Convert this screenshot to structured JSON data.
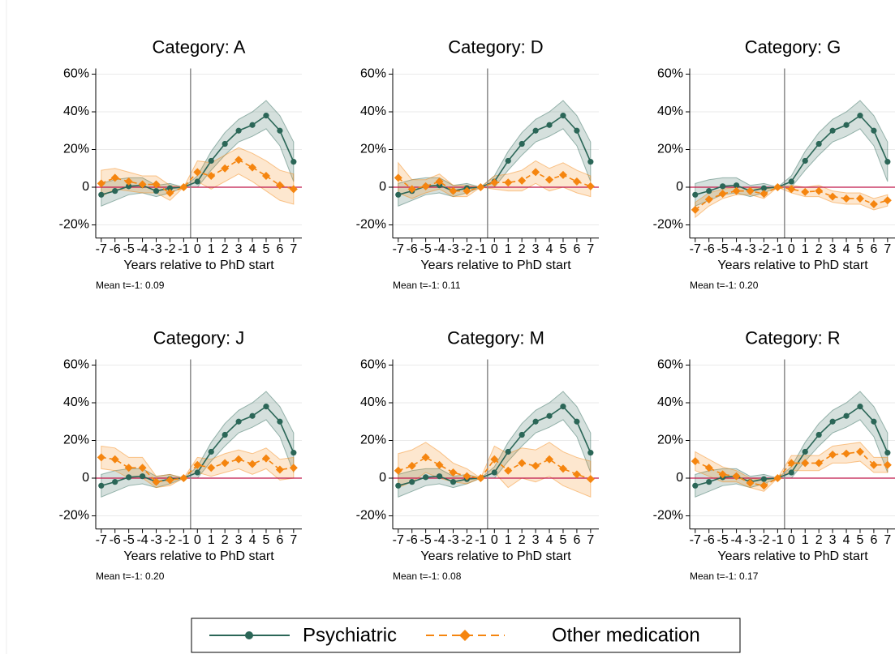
{
  "chart_data": [
    {
      "type": "line",
      "title": "Category: A",
      "xlabel": "Years relative to PhD start",
      "note": "Mean t=-1: 0.09",
      "x": [
        -7,
        -6,
        -5,
        -4,
        -3,
        -2,
        -1,
        0,
        1,
        2,
        3,
        4,
        5,
        6,
        7
      ],
      "xlim": [
        -7.4,
        7.6
      ],
      "xticks": [
        -7,
        -6,
        -5,
        -4,
        -3,
        -2,
        -1,
        0,
        1,
        2,
        3,
        4,
        5,
        6,
        7
      ],
      "ylim": [
        -27,
        63
      ],
      "yticks": [
        {
          "value": -20,
          "label": "-20%"
        },
        0,
        {
          "value": 20,
          "label": "20%"
        },
        {
          "value": 40,
          "label": "40%"
        },
        {
          "value": 60,
          "label": "60%"
        }
      ],
      "vline": -0.5,
      "hline": 0,
      "grid": true,
      "series": [
        {
          "name": "Psychiatric",
          "color": "#2b6657",
          "marker": "circle",
          "dash": false,
          "values": [
            -4,
            -2,
            0.5,
            1,
            -2,
            -0.5,
            0,
            3,
            14,
            23,
            30,
            33,
            38,
            30,
            13.5
          ],
          "ci_lower": [
            -10,
            -7,
            -4,
            -3,
            -5,
            -3,
            0,
            0,
            9,
            17,
            24,
            27,
            31,
            22,
            3
          ],
          "ci_upper": [
            2,
            4,
            5,
            5,
            1,
            2,
            0,
            6,
            19,
            29,
            36,
            40,
            46,
            38,
            24
          ]
        },
        {
          "name": "Other medication",
          "color": "#f5850f",
          "marker": "diamond",
          "dash": true,
          "values": [
            2,
            5,
            3,
            1.5,
            1.5,
            -3,
            0,
            8,
            6,
            10,
            14.5,
            10.5,
            6,
            1,
            -1
          ],
          "ci_lower": [
            -5,
            -1,
            -2,
            -3,
            -3,
            -7,
            0,
            3,
            -1,
            3,
            7,
            3,
            -2,
            -7,
            -9
          ],
          "ci_upper": [
            9,
            10,
            8,
            6,
            6,
            1,
            0,
            14,
            13,
            17,
            21,
            18,
            14,
            9,
            7
          ]
        }
      ]
    },
    {
      "type": "line",
      "title": "Category: D",
      "xlabel": "Years relative to PhD start",
      "note": "Mean t=-1: 0.11",
      "x": [
        -7,
        -6,
        -5,
        -4,
        -3,
        -2,
        -1,
        0,
        1,
        2,
        3,
        4,
        5,
        6,
        7
      ],
      "xlim": [
        -7.4,
        7.6
      ],
      "xticks": [
        -7,
        -6,
        -5,
        -4,
        -3,
        -2,
        -1,
        0,
        1,
        2,
        3,
        4,
        5,
        6,
        7
      ],
      "ylim": [
        -27,
        63
      ],
      "yticks": [
        {
          "value": -20,
          "label": "-20%"
        },
        0,
        {
          "value": 20,
          "label": "20%"
        },
        {
          "value": 40,
          "label": "40%"
        },
        {
          "value": 60,
          "label": "60%"
        }
      ],
      "vline": -0.5,
      "hline": 0,
      "grid": true,
      "series": [
        {
          "name": "Psychiatric",
          "color": "#2b6657",
          "marker": "circle",
          "dash": false,
          "values": [
            -4,
            -2,
            0.5,
            1,
            -2,
            -0.5,
            0,
            3,
            14,
            23,
            30,
            33,
            38,
            30,
            13.5
          ],
          "ci_lower": [
            -10,
            -7,
            -4,
            -3,
            -5,
            -3,
            0,
            0,
            9,
            17,
            24,
            27,
            31,
            22,
            3
          ],
          "ci_upper": [
            2,
            4,
            5,
            5,
            1,
            2,
            0,
            6,
            19,
            29,
            36,
            40,
            46,
            38,
            24
          ]
        },
        {
          "name": "Other medication",
          "color": "#f5850f",
          "marker": "diamond",
          "dash": true,
          "values": [
            5,
            -1,
            0.5,
            3,
            -2,
            -2,
            0,
            2.5,
            2.5,
            3.5,
            8,
            4,
            6.5,
            3,
            0.5
          ],
          "ci_lower": [
            -3,
            -6,
            -3,
            -1,
            -5,
            -5,
            0,
            -1,
            -2,
            -2,
            2,
            -2,
            0,
            -3,
            -5
          ],
          "ci_upper": [
            13,
            4,
            4,
            7,
            1,
            1,
            0,
            6,
            7,
            9,
            14,
            10,
            13,
            9,
            6
          ]
        }
      ]
    },
    {
      "type": "line",
      "title": "Category: G",
      "xlabel": "Years relative to PhD start",
      "note": "Mean t=-1: 0.20",
      "x": [
        -7,
        -6,
        -5,
        -4,
        -3,
        -2,
        -1,
        0,
        1,
        2,
        3,
        4,
        5,
        6,
        7
      ],
      "xlim": [
        -7.4,
        7.6
      ],
      "xticks": [
        -7,
        -6,
        -5,
        -4,
        -3,
        -2,
        -1,
        0,
        1,
        2,
        3,
        4,
        5,
        6,
        7
      ],
      "ylim": [
        -27,
        63
      ],
      "yticks": [
        {
          "value": -20,
          "label": "-20%"
        },
        0,
        {
          "value": 20,
          "label": "20%"
        },
        {
          "value": 40,
          "label": "40%"
        },
        {
          "value": 60,
          "label": "60%"
        }
      ],
      "vline": -0.5,
      "hline": 0,
      "grid": true,
      "series": [
        {
          "name": "Psychiatric",
          "color": "#2b6657",
          "marker": "circle",
          "dash": false,
          "values": [
            -4,
            -2,
            0.5,
            1,
            -2,
            -0.5,
            0,
            3,
            14,
            23,
            30,
            33,
            38,
            30,
            13.5
          ],
          "ci_lower": [
            -10,
            -7,
            -4,
            -3,
            -5,
            -3,
            0,
            0,
            9,
            17,
            24,
            27,
            31,
            22,
            3
          ],
          "ci_upper": [
            2,
            4,
            5,
            5,
            1,
            2,
            0,
            6,
            19,
            29,
            36,
            40,
            46,
            38,
            24
          ]
        },
        {
          "name": "Other medication",
          "color": "#f5850f",
          "marker": "diamond",
          "dash": true,
          "values": [
            -12,
            -6.5,
            -3.5,
            -2,
            -2,
            -3.5,
            0,
            -1,
            -2.5,
            -2,
            -5,
            -6,
            -6,
            -9,
            -7
          ],
          "ci_lower": [
            -16,
            -10,
            -6,
            -4,
            -4,
            -6,
            0,
            -3,
            -5,
            -5,
            -8,
            -9,
            -9,
            -12,
            -10
          ],
          "ci_upper": [
            -8,
            -3,
            -1,
            0,
            0,
            -1,
            0,
            1,
            0,
            1,
            -2,
            -3,
            -3,
            -6,
            -4
          ]
        }
      ]
    },
    {
      "type": "line",
      "title": "Category: J",
      "xlabel": "Years relative to PhD start",
      "note": "Mean t=-1: 0.20",
      "x": [
        -7,
        -6,
        -5,
        -4,
        -3,
        -2,
        -1,
        0,
        1,
        2,
        3,
        4,
        5,
        6,
        7
      ],
      "xlim": [
        -7.4,
        7.6
      ],
      "xticks": [
        -7,
        -6,
        -5,
        -4,
        -3,
        -2,
        -1,
        0,
        1,
        2,
        3,
        4,
        5,
        6,
        7
      ],
      "ylim": [
        -27,
        63
      ],
      "yticks": [
        {
          "value": -20,
          "label": "-20%"
        },
        0,
        {
          "value": 20,
          "label": "20%"
        },
        {
          "value": 40,
          "label": "40%"
        },
        {
          "value": 60,
          "label": "60%"
        }
      ],
      "vline": -0.5,
      "hline": 0,
      "grid": true,
      "series": [
        {
          "name": "Psychiatric",
          "color": "#2b6657",
          "marker": "circle",
          "dash": false,
          "values": [
            -4,
            -2,
            0.5,
            1,
            -2,
            -0.5,
            0,
            3,
            14,
            23,
            30,
            33,
            38,
            30,
            13.5
          ],
          "ci_lower": [
            -10,
            -7,
            -4,
            -3,
            -5,
            -3,
            0,
            0,
            9,
            17,
            24,
            27,
            31,
            22,
            3
          ],
          "ci_upper": [
            2,
            4,
            5,
            5,
            1,
            2,
            0,
            6,
            19,
            29,
            36,
            40,
            46,
            38,
            24
          ]
        },
        {
          "name": "Other medication",
          "color": "#f5850f",
          "marker": "diamond",
          "dash": true,
          "values": [
            11,
            10,
            5.5,
            5.5,
            -2,
            -1,
            0,
            7,
            5.5,
            8,
            10,
            7.5,
            10.5,
            4.5,
            5.5
          ],
          "ci_lower": [
            5,
            4,
            0,
            0,
            -5,
            -4,
            0,
            3,
            1,
            3,
            5,
            2,
            5,
            -1,
            0
          ],
          "ci_upper": [
            17,
            16,
            11,
            11,
            1,
            2,
            0,
            11,
            10,
            13,
            15,
            13,
            16,
            10,
            11
          ]
        }
      ]
    },
    {
      "type": "line",
      "title": "Category: M",
      "xlabel": "Years relative to PhD start",
      "note": "Mean t=-1: 0.08",
      "x": [
        -7,
        -6,
        -5,
        -4,
        -3,
        -2,
        -1,
        0,
        1,
        2,
        3,
        4,
        5,
        6,
        7
      ],
      "xlim": [
        -7.4,
        7.6
      ],
      "xticks": [
        -7,
        -6,
        -5,
        -4,
        -3,
        -2,
        -1,
        0,
        1,
        2,
        3,
        4,
        5,
        6,
        7
      ],
      "ylim": [
        -27,
        63
      ],
      "yticks": [
        {
          "value": -20,
          "label": "-20%"
        },
        0,
        {
          "value": 20,
          "label": "20%"
        },
        {
          "value": 40,
          "label": "40%"
        },
        {
          "value": 60,
          "label": "60%"
        }
      ],
      "vline": -0.5,
      "hline": 0,
      "grid": true,
      "series": [
        {
          "name": "Psychiatric",
          "color": "#2b6657",
          "marker": "circle",
          "dash": false,
          "values": [
            -4,
            -2,
            0.5,
            1,
            -2,
            -0.5,
            0,
            3,
            14,
            23,
            30,
            33,
            38,
            30,
            13.5
          ],
          "ci_lower": [
            -10,
            -7,
            -4,
            -3,
            -5,
            -3,
            0,
            0,
            9,
            17,
            24,
            27,
            31,
            22,
            3
          ],
          "ci_upper": [
            2,
            4,
            5,
            5,
            1,
            2,
            0,
            6,
            19,
            29,
            36,
            40,
            46,
            38,
            24
          ]
        },
        {
          "name": "Other medication",
          "color": "#f5850f",
          "marker": "diamond",
          "dash": true,
          "values": [
            4,
            6.5,
            11,
            7,
            3,
            1,
            0,
            10,
            4,
            8,
            6.5,
            10,
            5,
            2,
            -0.5
          ],
          "ci_lower": [
            -5,
            -2,
            3,
            0,
            -2,
            -3,
            0,
            3,
            -5,
            0,
            -2,
            1,
            -4,
            -7,
            -10
          ],
          "ci_upper": [
            13,
            15,
            19,
            14,
            8,
            5,
            0,
            17,
            13,
            16,
            15,
            19,
            14,
            11,
            9
          ]
        }
      ]
    },
    {
      "type": "line",
      "title": "Category: R",
      "xlabel": "Years relative to PhD start",
      "note": "Mean t=-1: 0.17",
      "x": [
        -7,
        -6,
        -5,
        -4,
        -3,
        -2,
        -1,
        0,
        1,
        2,
        3,
        4,
        5,
        6,
        7
      ],
      "xlim": [
        -7.4,
        7.6
      ],
      "xticks": [
        -7,
        -6,
        -5,
        -4,
        -3,
        -2,
        -1,
        0,
        1,
        2,
        3,
        4,
        5,
        6,
        7
      ],
      "ylim": [
        -27,
        63
      ],
      "yticks": [
        {
          "value": -20,
          "label": "-20%"
        },
        0,
        {
          "value": 20,
          "label": "20%"
        },
        {
          "value": 40,
          "label": "40%"
        },
        {
          "value": 60,
          "label": "60%"
        }
      ],
      "vline": -0.5,
      "hline": 0,
      "grid": true,
      "series": [
        {
          "name": "Psychiatric",
          "color": "#2b6657",
          "marker": "circle",
          "dash": false,
          "values": [
            -4,
            -2,
            0.5,
            1,
            -2,
            -0.5,
            0,
            3,
            14,
            23,
            30,
            33,
            38,
            30,
            13.5
          ],
          "ci_lower": [
            -10,
            -7,
            -4,
            -3,
            -5,
            -3,
            0,
            0,
            9,
            17,
            24,
            27,
            31,
            22,
            3
          ],
          "ci_upper": [
            2,
            4,
            5,
            5,
            1,
            2,
            0,
            6,
            19,
            29,
            36,
            40,
            46,
            38,
            24
          ]
        },
        {
          "name": "Other medication",
          "color": "#f5850f",
          "marker": "diamond",
          "dash": true,
          "values": [
            9,
            5.5,
            2,
            1,
            -2.5,
            -4,
            0,
            8,
            8,
            8,
            12.5,
            13,
            14,
            7,
            7
          ],
          "ci_lower": [
            4,
            1,
            -2,
            -2,
            -5,
            -7,
            0,
            4,
            4,
            4,
            8,
            8,
            9,
            3,
            3
          ],
          "ci_upper": [
            14,
            10,
            6,
            4,
            0,
            -1,
            0,
            12,
            12,
            12,
            17,
            18,
            19,
            11,
            11
          ]
        }
      ]
    }
  ]
}
